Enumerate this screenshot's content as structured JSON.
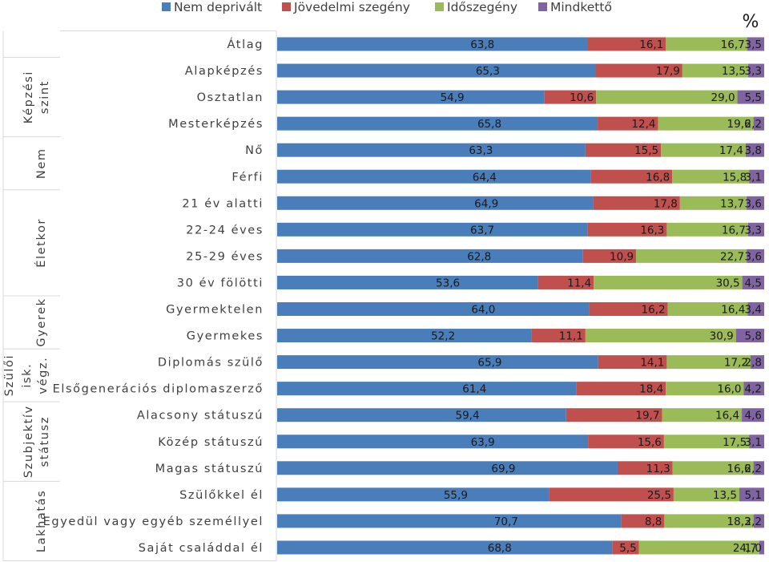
{
  "chart_data": {
    "type": "bar",
    "orientation": "horizontal",
    "stacked": true,
    "normalized": true,
    "unit_label": "%",
    "legend_position": "top",
    "colors": {
      "Nem deprivált": "#4a7ebb",
      "Jövedelmi szegény": "#c0504d",
      "Időszegény": "#9bbb59",
      "Mindkettő": "#8064a2"
    },
    "legend": [
      "Nem deprivált",
      "Jövedelmi szegény",
      "Időszegény",
      "Mindkettő"
    ],
    "categories": [
      "Átlag",
      "Alapképzés",
      "Osztatlan",
      "Mesterképzés",
      "Nő",
      "Férfi",
      "21 év alatti",
      "22-24 éves",
      "25-29 éves",
      "30 év fölötti",
      "Gyermektelen",
      "Gyermekes",
      "Diplomás szülő",
      "Elsőgenerációs diplomaszerző",
      "Alacsony státuszú",
      "Közép státuszú",
      "Magas státuszú",
      "Szülőkkel él",
      "Egyedül vagy egyéb személlyel",
      "Saját családdal él"
    ],
    "groups": [
      {
        "label": [
          "Képzési",
          "szint"
        ],
        "first": 1,
        "last": 3
      },
      {
        "label": [
          "Nem"
        ],
        "first": 4,
        "last": 5
      },
      {
        "label": [
          "Életkor"
        ],
        "first": 6,
        "last": 9
      },
      {
        "label": [
          "Gyerek"
        ],
        "first": 10,
        "last": 11
      },
      {
        "label": [
          "Szülői",
          "isk.",
          "végz."
        ],
        "first": 12,
        "last": 13
      },
      {
        "label": [
          "Szubjektív",
          "státusz"
        ],
        "first": 14,
        "last": 16
      },
      {
        "label": [
          "Lakhatás"
        ],
        "first": 17,
        "last": 19
      }
    ],
    "series": [
      {
        "name": "Nem deprivált",
        "values": [
          "63,8",
          "65,3",
          "54,9",
          "65,8",
          "63,3",
          "64,4",
          "64,9",
          "63,7",
          "62,8",
          "53,6",
          "64,0",
          "52,2",
          "65,9",
          "61,4",
          "59,4",
          "63,9",
          "69,9",
          "55,9",
          "70,7",
          "68,8"
        ]
      },
      {
        "name": "Jövedelmi szegény",
        "values": [
          "16,1",
          "17,9",
          "10,6",
          "12,4",
          "15,5",
          "16,8",
          "17,8",
          "16,3",
          "10,9",
          "11,4",
          "16,2",
          "11,1",
          "14,1",
          "18,4",
          "19,7",
          "15,6",
          "11,3",
          "25,5",
          "8,8",
          "5,5"
        ]
      },
      {
        "name": "Időszegény",
        "values": [
          "16,7",
          "13,5",
          "29,0",
          "19,6",
          "17,4",
          "15,8",
          "13,7",
          "16,7",
          "22,7",
          "30,5",
          "16,4",
          "30,9",
          "17,2",
          "16,0",
          "16,4",
          "17,5",
          "16,6",
          "13,5",
          "18,3",
          "24,7"
        ]
      },
      {
        "name": "Mindkettő",
        "values": [
          "3,5",
          "3,3",
          "5,5",
          "2,2",
          "3,8",
          "3,1",
          "3,6",
          "3,3",
          "3,6",
          "4,5",
          "3,4",
          "5,8",
          "2,8",
          "4,2",
          "4,6",
          "3,1",
          "2,2",
          "5,1",
          "2,2",
          "1,0"
        ]
      }
    ]
  }
}
